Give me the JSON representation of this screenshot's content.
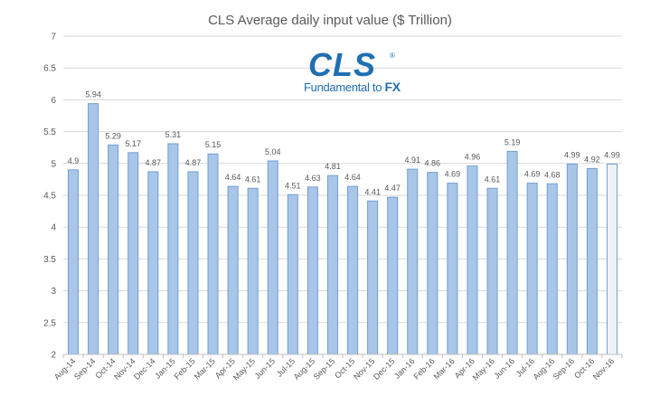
{
  "chart_data": {
    "type": "bar",
    "title": "CLS Average daily input value ($ Trillion)",
    "xlabel": "",
    "ylabel": "",
    "ylim": [
      2,
      7
    ],
    "yticks": [
      "2",
      "2.5",
      "3",
      "3.5",
      "4",
      "4.5",
      "5",
      "5.5",
      "6",
      "6.5",
      "7"
    ],
    "grid": true,
    "legend": "none",
    "bar_color": "#a9c5e8",
    "highlight_bar_color": "#eef2f7",
    "bar_border_color": "#6f9fd4",
    "categories": [
      "Aug-14",
      "Sep-14",
      "Oct-14",
      "Nov-14",
      "Dec-14",
      "Jan-15",
      "Feb-15",
      "Mar-15",
      "Apr-15",
      "May-15",
      "Jun-15",
      "Jul-15",
      "Aug-15",
      "Sep-15",
      "Oct-15",
      "Nov-15",
      "Dec-15",
      "Jan-16",
      "Feb-16",
      "Mar-16",
      "Apr-16",
      "May-16",
      "Jun-16",
      "Jul-16",
      "Aug-16",
      "Sep-16",
      "Oct-16",
      "Nov-16"
    ],
    "values": [
      4.9,
      5.94,
      5.29,
      5.17,
      4.87,
      5.31,
      4.87,
      5.15,
      4.64,
      4.61,
      5.04,
      4.51,
      4.63,
      4.81,
      4.64,
      4.41,
      4.47,
      4.91,
      4.86,
      4.69,
      4.96,
      4.61,
      5.19,
      4.69,
      4.68,
      4.99,
      4.92,
      4.99
    ],
    "data_labels": [
      "4.9",
      "5.94",
      "5.29",
      "5.17",
      "4.87",
      "5.31",
      "4.87",
      "5.15",
      "4.64",
      "4.61",
      "5.04",
      "4.51",
      "4.63",
      "4.81",
      "4.64",
      "4.41",
      "4.47",
      "4.91",
      "4.86",
      "4.69",
      "4.96",
      "4.61",
      "5.19",
      "4.69",
      "4.68",
      "4.99",
      "4.92",
      "4.99"
    ]
  },
  "logo": {
    "name": "cls-logo-icon",
    "wordmark": "CLS",
    "registered": "®",
    "tagline_prefix": "Fundamental to ",
    "tagline_emphasis": "FX",
    "color": "#1f6fb2"
  }
}
